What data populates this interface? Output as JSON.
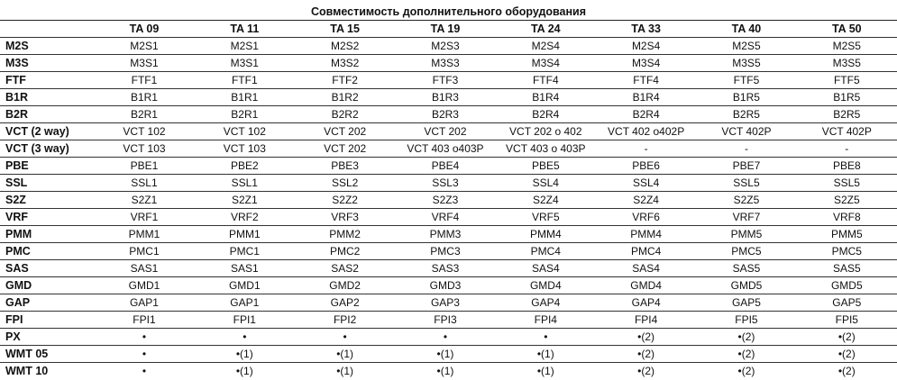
{
  "title": "Совместимость дополнительного оборудования",
  "columns": [
    "TA 09",
    "TA 11",
    "TA 15",
    "TA  19",
    "TA 24",
    "TA 33",
    "TA 40",
    "TA 50"
  ],
  "rows": [
    {
      "label": "M2S",
      "cells": [
        "M2S1",
        "M2S1",
        "M2S2",
        "M2S3",
        "M2S4",
        "M2S4",
        "M2S5",
        "M2S5"
      ]
    },
    {
      "label": "M3S",
      "cells": [
        "M3S1",
        "M3S1",
        "M3S2",
        "M3S3",
        "M3S4",
        "M3S4",
        "M3S5",
        "M3S5"
      ]
    },
    {
      "label": "FTF",
      "cells": [
        "FTF1",
        "FTF1",
        "FTF2",
        "FTF3",
        "FTF4",
        "FTF4",
        "FTF5",
        "FTF5"
      ]
    },
    {
      "label": "B1R",
      "cells": [
        "B1R1",
        "B1R1",
        "B1R2",
        "B1R3",
        "B1R4",
        "B1R4",
        "B1R5",
        "B1R5"
      ]
    },
    {
      "label": "B2R",
      "cells": [
        "B2R1",
        "B2R1",
        "B2R2",
        "B2R3",
        "B2R4",
        "B2R4",
        "B2R5",
        "B2R5"
      ]
    },
    {
      "label": "VCT (2 way)",
      "cells": [
        "VCT 102",
        "VCT 102",
        "VCT 202",
        "VCT 202",
        "VCT 202 o 402",
        "VCT 402  o402P",
        "VCT 402P",
        "VCT 402P"
      ]
    },
    {
      "label": "VCT (3 way)",
      "cells": [
        "VCT 103",
        "VCT 103",
        "VCT 202",
        "VCT 403  o403P",
        "VCT 403  o 403P",
        "-",
        "-",
        "-"
      ]
    },
    {
      "label": "PBE",
      "cells": [
        "PBE1",
        "PBE2",
        "PBE3",
        "PBE4",
        "PBE5",
        "PBE6",
        "PBE7",
        "PBE8"
      ]
    },
    {
      "label": "SSL",
      "cells": [
        "SSL1",
        "SSL1",
        "SSL2",
        "SSL3",
        "SSL4",
        "SSL4",
        "SSL5",
        "SSL5"
      ]
    },
    {
      "label": "S2Z",
      "cells": [
        "S2Z1",
        "S2Z1",
        "S2Z2",
        "S2Z3",
        "S2Z4",
        "S2Z4",
        "S2Z5",
        "S2Z5"
      ]
    },
    {
      "label": "VRF",
      "cells": [
        "VRF1",
        "VRF2",
        "VRF3",
        "VRF4",
        "VRF5",
        "VRF6",
        "VRF7",
        "VRF8"
      ]
    },
    {
      "label": "PMM",
      "cells": [
        "PMM1",
        "PMM1",
        "PMM2",
        "PMM3",
        "PMM4",
        "PMM4",
        "PMM5",
        "PMM5"
      ]
    },
    {
      "label": "PMC",
      "cells": [
        "PMC1",
        "PMC1",
        "PMC2",
        "PMC3",
        "PMC4",
        "PMC4",
        "PMC5",
        "PMC5"
      ]
    },
    {
      "label": "SAS",
      "cells": [
        "SAS1",
        "SAS1",
        "SAS2",
        "SAS3",
        "SAS4",
        "SAS4",
        "SAS5",
        "SAS5"
      ]
    },
    {
      "label": "GMD",
      "cells": [
        "GMD1",
        "GMD1",
        "GMD2",
        "GMD3",
        "GMD4",
        "GMD4",
        "GMD5",
        "GMD5"
      ]
    },
    {
      "label": "GAP",
      "cells": [
        "GAP1",
        "GAP1",
        "GAP2",
        "GAP3",
        "GAP4",
        "GAP4",
        "GAP5",
        "GAP5"
      ]
    },
    {
      "label": "FPI",
      "cells": [
        "FPI1",
        "FPI1",
        "FPI2",
        "FPI3",
        "FPI4",
        "FPI4",
        "FPI5",
        "FPI5"
      ]
    },
    {
      "label": "PX",
      "cells": [
        "•",
        "•",
        "•",
        "•",
        "•",
        "•(2)",
        "•(2)",
        "•(2)"
      ]
    },
    {
      "label": "WMT 05",
      "cells": [
        "•",
        "•(1)",
        "•(1)",
        "•(1)",
        "•(1)",
        "•(2)",
        "•(2)",
        "•(2)"
      ]
    },
    {
      "label": "WMT 10",
      "cells": [
        "•",
        "•(1)",
        "•(1)",
        "•(1)",
        "•(1)",
        "•(2)",
        "•(2)",
        "•(2)"
      ]
    }
  ]
}
